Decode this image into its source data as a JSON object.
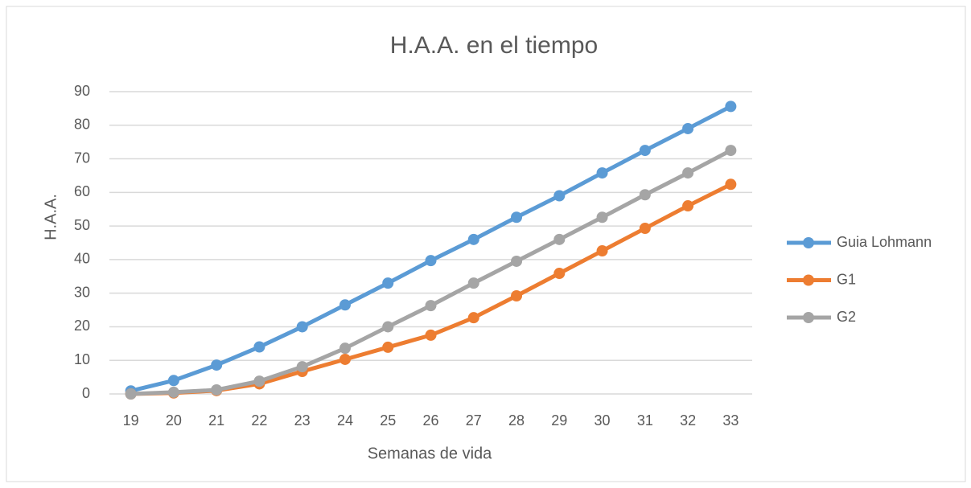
{
  "chart_data": {
    "type": "line",
    "title": "H.A.A. en el tiempo",
    "x_label": "Semanas de vida",
    "y_label": "H.A.A.",
    "categories": [
      "19",
      "20",
      "21",
      "22",
      "23",
      "24",
      "25",
      "26",
      "27",
      "28",
      "29",
      "30",
      "31",
      "32",
      "33"
    ],
    "series": [
      {
        "name": "Guia Lohmann",
        "color": "#5b9bd5",
        "values": [
          0.9,
          4,
          8.6,
          14,
          20,
          26.5,
          33,
          39.7,
          46,
          52.6,
          59,
          65.8,
          72.5,
          79,
          85.6
        ]
      },
      {
        "name": "G1",
        "color": "#ed7d31",
        "values": [
          0,
          0.3,
          1,
          3,
          6.7,
          10.3,
          13.9,
          17.5,
          22.7,
          29.2,
          35.9,
          42.6,
          49.3,
          56,
          62.4
        ]
      },
      {
        "name": "G2",
        "color": "#a5a5a5",
        "values": [
          0,
          0.5,
          1.2,
          3.8,
          8.1,
          13.6,
          20,
          26.3,
          33,
          39.5,
          46,
          52.6,
          59.3,
          65.8,
          72.5
        ]
      }
    ],
    "ylim": [
      0,
      90
    ],
    "yticks": [
      0,
      10,
      20,
      30,
      40,
      50,
      60,
      70,
      80,
      90
    ],
    "grid": true,
    "legend": "right"
  }
}
